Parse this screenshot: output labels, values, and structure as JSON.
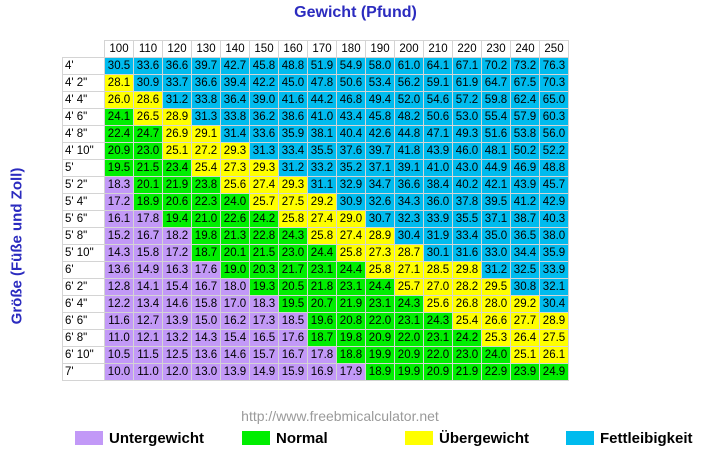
{
  "chart_data": {
    "type": "table",
    "title": "Gewicht (Pfund)",
    "ylabel": "Größe (Füße und Zoll)",
    "source": "http://www.freebmicalculator.net",
    "columns": [
      "100",
      "110",
      "120",
      "130",
      "140",
      "150",
      "160",
      "170",
      "180",
      "190",
      "200",
      "210",
      "220",
      "230",
      "240",
      "250"
    ],
    "rows": [
      {
        "label": "4'",
        "values": [
          30.5,
          33.6,
          36.6,
          39.7,
          42.7,
          45.8,
          48.8,
          51.9,
          54.9,
          58.0,
          61.0,
          64.1,
          67.1,
          70.2,
          73.2,
          76.3
        ],
        "cats": "NNNNNNNNNNNNNNNN"
      },
      {
        "label": "4' 2\"",
        "values": [
          28.1,
          30.9,
          33.7,
          36.6,
          39.4,
          42.2,
          45.0,
          47.8,
          50.6,
          53.4,
          56.2,
          59.1,
          61.9,
          64.7,
          67.5,
          70.3
        ],
        "cats": "VNNNNNNNNNNNNNNN"
      },
      {
        "label": "4' 4\"",
        "values": [
          26.0,
          28.6,
          31.2,
          33.8,
          36.4,
          39.0,
          41.6,
          44.2,
          46.8,
          49.4,
          52.0,
          54.6,
          57.2,
          59.8,
          62.4,
          65.0
        ],
        "cats": "VVNNNNNNNNNNNNNN"
      },
      {
        "label": "4' 6\"",
        "values": [
          24.1,
          26.5,
          28.9,
          31.3,
          33.8,
          36.2,
          38.6,
          41.0,
          43.4,
          45.8,
          48.2,
          50.6,
          53.0,
          55.4,
          57.9,
          60.3
        ],
        "cats": "GVVNNNNNNNNNNNNN"
      },
      {
        "label": "4' 8\"",
        "values": [
          22.4,
          24.7,
          26.9,
          29.1,
          31.4,
          33.6,
          35.9,
          38.1,
          40.4,
          42.6,
          44.8,
          47.1,
          49.3,
          51.6,
          53.8,
          56.0
        ],
        "cats": "GGVVNNNNNNNNNNNN"
      },
      {
        "label": "4' 10\"",
        "values": [
          20.9,
          23.0,
          25.1,
          27.2,
          29.3,
          31.3,
          33.4,
          35.5,
          37.6,
          39.7,
          41.8,
          43.9,
          46.0,
          48.1,
          50.2,
          52.2
        ],
        "cats": "GGVVVNNNNNNNNNNN"
      },
      {
        "label": "5'",
        "values": [
          19.5,
          21.5,
          23.4,
          25.4,
          27.3,
          29.3,
          31.2,
          33.2,
          35.2,
          37.1,
          39.1,
          41.0,
          43.0,
          44.9,
          46.9,
          48.8
        ],
        "cats": "GGGVVVNNNNNNNNNN"
      },
      {
        "label": "5' 2\"",
        "values": [
          18.3,
          20.1,
          21.9,
          23.8,
          25.6,
          27.4,
          29.3,
          31.1,
          32.9,
          34.7,
          36.6,
          38.4,
          40.2,
          42.1,
          43.9,
          45.7
        ],
        "cats": "UGGGVVVNNNNNNNNN"
      },
      {
        "label": "5' 4\"",
        "values": [
          17.2,
          18.9,
          20.6,
          22.3,
          24.0,
          25.7,
          27.5,
          29.2,
          30.9,
          32.6,
          34.3,
          36.0,
          37.8,
          39.5,
          41.2,
          42.9
        ],
        "cats": "UGGGGVVVNNNNNNNN"
      },
      {
        "label": "5' 6\"",
        "values": [
          16.1,
          17.8,
          19.4,
          21.0,
          22.6,
          24.2,
          25.8,
          27.4,
          29.0,
          30.7,
          32.3,
          33.9,
          35.5,
          37.1,
          38.7,
          40.3
        ],
        "cats": "UUGGGGVVVNNNNNNN"
      },
      {
        "label": "5' 8\"",
        "values": [
          15.2,
          16.7,
          18.2,
          19.8,
          21.3,
          22.8,
          24.3,
          25.8,
          27.4,
          28.9,
          30.4,
          31.9,
          33.4,
          35.0,
          36.5,
          38.0
        ],
        "cats": "UUUGGGGVVVNNNNNN"
      },
      {
        "label": "5' 10\"",
        "values": [
          14.3,
          15.8,
          17.2,
          18.7,
          20.1,
          21.5,
          23.0,
          24.4,
          25.8,
          27.3,
          28.7,
          30.1,
          31.6,
          33.0,
          34.4,
          35.9
        ],
        "cats": "UUUGGGGGVVVNNNNN"
      },
      {
        "label": "6'",
        "values": [
          13.6,
          14.9,
          16.3,
          17.6,
          19.0,
          20.3,
          21.7,
          23.1,
          24.4,
          25.8,
          27.1,
          28.5,
          29.8,
          31.2,
          32.5,
          33.9
        ],
        "cats": "UUUUGGGGGVVVVNNN"
      },
      {
        "label": "6' 2\"",
        "values": [
          12.8,
          14.1,
          15.4,
          16.7,
          18.0,
          19.3,
          20.5,
          21.8,
          23.1,
          24.4,
          25.7,
          27.0,
          28.2,
          29.5,
          30.8,
          32.1
        ],
        "cats": "UUUUUGGGGGVVVVNN"
      },
      {
        "label": "6' 4\"",
        "values": [
          12.2,
          13.4,
          14.6,
          15.8,
          17.0,
          18.3,
          19.5,
          20.7,
          21.9,
          23.1,
          24.3,
          25.6,
          26.8,
          28.0,
          29.2,
          30.4
        ],
        "cats": "UUUUUUGGGGGVVVVN"
      },
      {
        "label": "6' 6\"",
        "values": [
          11.6,
          12.7,
          13.9,
          15.0,
          16.2,
          17.3,
          18.5,
          19.6,
          20.8,
          22.0,
          23.1,
          24.3,
          25.4,
          26.6,
          27.7,
          28.9
        ],
        "cats": "UUUUUUUGGGGGVVVV"
      },
      {
        "label": "6' 8\"",
        "values": [
          11.0,
          12.1,
          13.2,
          14.3,
          15.4,
          16.5,
          17.6,
          18.7,
          19.8,
          20.9,
          22.0,
          23.1,
          24.2,
          25.3,
          26.4,
          27.5
        ],
        "cats": "UUUUUUUGGGGGGVVV"
      },
      {
        "label": "6' 10\"",
        "values": [
          10.5,
          11.5,
          12.5,
          13.6,
          14.6,
          15.7,
          16.7,
          17.8,
          18.8,
          19.9,
          20.9,
          22.0,
          23.0,
          24.0,
          25.1,
          26.1
        ],
        "cats": "UUUUUUUUGGGGGGVV"
      },
      {
        "label": "7'",
        "values": [
          10.0,
          11.0,
          12.0,
          13.0,
          13.9,
          14.9,
          15.9,
          16.9,
          17.9,
          18.9,
          19.9,
          20.9,
          21.9,
          22.9,
          23.9,
          24.9
        ],
        "cats": "UUUUUUUUUGGGGGGG"
      }
    ],
    "categories": {
      "U": {
        "label": "Untergewicht",
        "color": "#c299f7"
      },
      "G": {
        "label": "Normal",
        "color": "#00ee00"
      },
      "V": {
        "label": "Übergewicht",
        "color": "#ffff00"
      },
      "N": {
        "label": "Fettleibigkeit",
        "color": "#00bbee"
      }
    },
    "legend_order": [
      "U",
      "G",
      "V",
      "N"
    ]
  }
}
